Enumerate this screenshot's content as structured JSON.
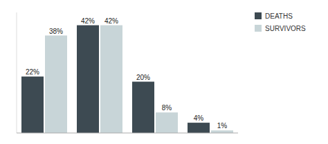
{
  "chart_data": {
    "type": "bar",
    "categories": [
      null,
      null,
      null,
      null
    ],
    "series": [
      {
        "name": "DEATHS",
        "color": "#3d4a52",
        "values": [
          22,
          42,
          20,
          4
        ],
        "value_labels": [
          "22%",
          "42%",
          "20%",
          "4%"
        ]
      },
      {
        "name": "SURVIVORS",
        "color": "#c8d5d8",
        "values": [
          38,
          42,
          8,
          1
        ],
        "value_labels": [
          "38%",
          "42%",
          "8%",
          "1%"
        ]
      }
    ],
    "ylim": [
      0,
      47
    ],
    "data_labels": true,
    "tick_labels": false,
    "grid": false,
    "legend": "upper right"
  }
}
